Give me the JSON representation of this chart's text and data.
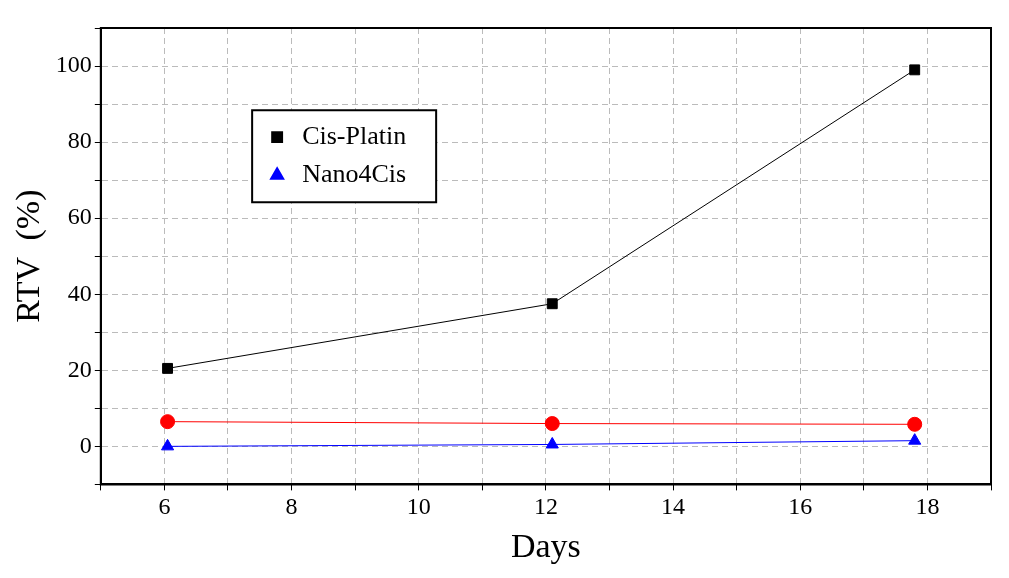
{
  "chart_data": {
    "type": "line",
    "xlabel": "Days",
    "ylabel": "RTV  (%)",
    "xlim": [
      5,
      19
    ],
    "xticks": [
      {
        "value": 5,
        "label": null
      },
      6,
      {
        "value": 7,
        "label": null
      },
      8,
      {
        "value": 9,
        "label": null
      },
      10,
      {
        "value": 11,
        "label": null
      },
      12,
      {
        "value": 13,
        "label": null
      },
      14,
      {
        "value": 15,
        "label": null
      },
      16,
      {
        "value": 17,
        "label": null
      },
      18,
      {
        "value": 19,
        "label": null
      }
    ],
    "ylim": [
      -10,
      110
    ],
    "yticks": [
      {
        "value": -10,
        "label": null
      },
      0,
      {
        "value": 10,
        "label": null
      },
      20,
      {
        "value": 30,
        "label": null
      },
      40,
      {
        "value": 50,
        "label": null
      },
      60,
      {
        "value": 70,
        "label": null
      },
      80,
      {
        "value": 90,
        "label": null
      },
      100,
      {
        "value": 110,
        "label": null
      }
    ],
    "grid": true,
    "legend": "top left",
    "line_style": "solid",
    "series": [
      {
        "name": "Cis-Platin",
        "color": "#000000",
        "marker": "square",
        "x": [
          6.05,
          12.1,
          17.8
        ],
        "values": [
          20.5,
          37.5,
          99
        ]
      },
      {
        "color": "#ff0000",
        "marker": "circle",
        "x": [
          6.05,
          12.1,
          17.8
        ],
        "values": [
          6.5,
          6,
          5.8
        ]
      },
      {
        "name": "Nano4Cis",
        "color": "#0000ff",
        "marker": "triangle",
        "x": [
          6.05,
          12.1,
          17.8
        ],
        "values": [
          0,
          0.5,
          1.5
        ]
      }
    ]
  }
}
